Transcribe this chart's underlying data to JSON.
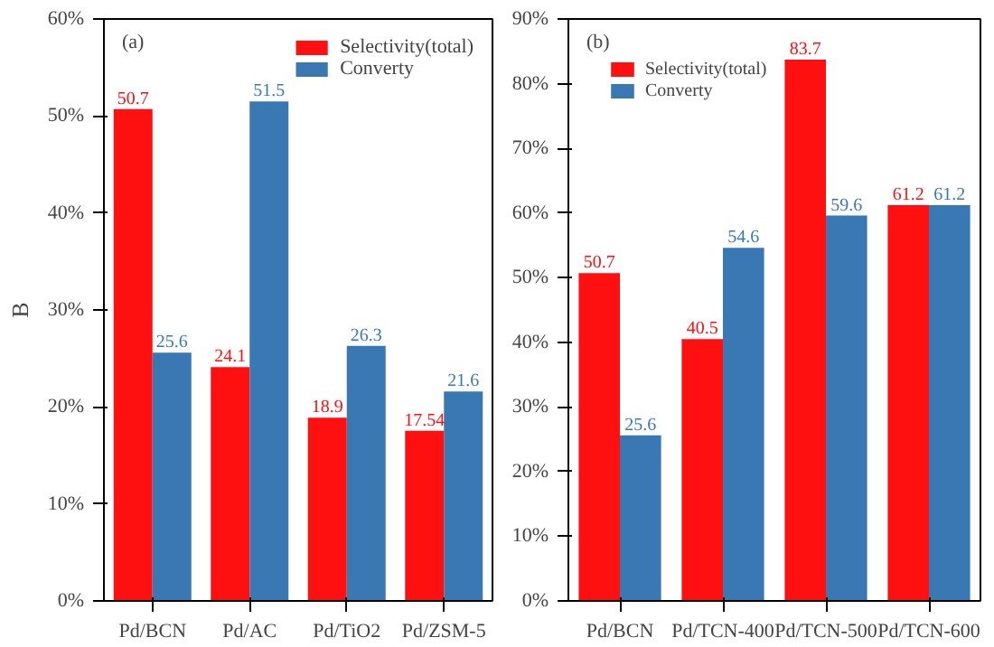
{
  "chart_data": [
    {
      "type": "bar",
      "categories": [
        "Pd/BCN",
        "Pd/AC",
        "Pd/TiO2",
        "Pd/ZSM-5"
      ],
      "ylabel": "B",
      "annotations": [
        "(a)"
      ],
      "series": [
        {
          "name": "Selectivity(total)",
          "color": "#ff1010",
          "values": [
            50.7,
            24.1,
            18.9,
            17.54
          ]
        },
        {
          "name": "Converty",
          "color": "#3a78b4",
          "values": [
            25.6,
            51.5,
            26.3,
            21.6
          ]
        }
      ],
      "ylim": [
        0,
        60
      ],
      "yticks": [
        {
          "value": 0,
          "label": "0%"
        },
        {
          "value": 10,
          "label": "10%"
        },
        {
          "value": 20,
          "label": "20%"
        },
        {
          "value": 30,
          "label": "30%"
        },
        {
          "value": 40,
          "label": "40%"
        },
        {
          "value": 50,
          "label": "50%"
        },
        {
          "value": 60,
          "label": "60%"
        }
      ],
      "data_labels": true,
      "legend": "top right",
      "grid": false
    },
    {
      "type": "bar",
      "categories": [
        "Pd/BCN",
        "Pd/TCN-400",
        "Pd/TCN-500",
        "Pd/TCN-600"
      ],
      "annotations": [
        "(b)"
      ],
      "series": [
        {
          "name": "Selectivity(total)",
          "color": "#ff1010",
          "values": [
            50.7,
            40.5,
            83.7,
            61.2
          ]
        },
        {
          "name": "Converty",
          "color": "#3a78b4",
          "values": [
            25.6,
            54.6,
            59.6,
            61.2
          ]
        }
      ],
      "ylim": [
        0,
        90
      ],
      "yticks": [
        {
          "value": 0,
          "label": "0%"
        },
        {
          "value": 10,
          "label": "10%"
        },
        {
          "value": 20,
          "label": "20%"
        },
        {
          "value": 30,
          "label": "30%"
        },
        {
          "value": 40,
          "label": "40%"
        },
        {
          "value": 50,
          "label": "50%"
        },
        {
          "value": 60,
          "label": "60%"
        },
        {
          "value": 70,
          "label": "70%"
        },
        {
          "value": 80,
          "label": "80%"
        },
        {
          "value": 90,
          "label": "90%"
        }
      ],
      "data_labels": true,
      "legend": "top left",
      "grid": false
    }
  ]
}
